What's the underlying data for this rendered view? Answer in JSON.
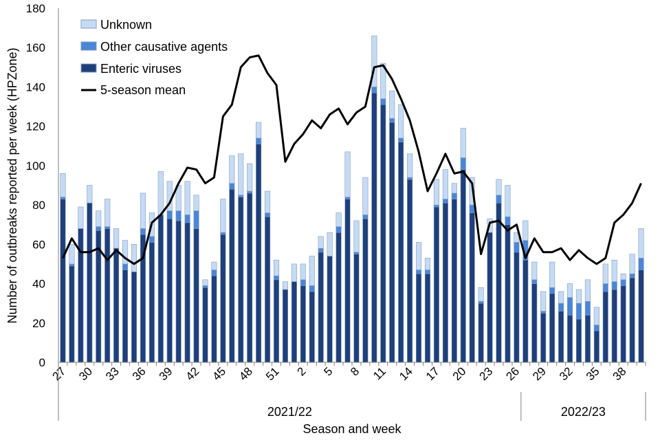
{
  "chart_data": {
    "type": "bar",
    "stacked": true,
    "title": "",
    "xlabel": "Season and week",
    "ylabel": "Number of outbreaks reported per week (HPZone)",
    "ylim": [
      0,
      180
    ],
    "ytick_step": 20,
    "x_tick_labels": [
      "27",
      "30",
      "33",
      "36",
      "39",
      "42",
      "45",
      "48",
      "51",
      "2",
      "5",
      "8",
      "11",
      "14",
      "17",
      "20",
      "23",
      "26",
      "29",
      "32",
      "35",
      "38"
    ],
    "seasons": [
      {
        "label": "2021/22",
        "start_index": 0,
        "count": 52
      },
      {
        "label": "2022/23",
        "start_index": 52,
        "count": 14
      }
    ],
    "weeks": [
      27,
      28,
      29,
      30,
      31,
      32,
      33,
      34,
      35,
      36,
      37,
      38,
      39,
      40,
      41,
      42,
      43,
      44,
      45,
      46,
      47,
      48,
      49,
      50,
      51,
      52,
      1,
      2,
      3,
      4,
      5,
      6,
      7,
      8,
      9,
      10,
      11,
      12,
      13,
      14,
      15,
      16,
      17,
      18,
      19,
      20,
      21,
      22,
      23,
      24,
      25,
      26,
      27,
      28,
      29,
      30,
      31,
      32,
      33,
      34,
      35,
      36,
      37,
      38,
      39,
      40
    ],
    "legend": [
      "Unknown",
      "Other causative agents",
      "Enteric viruses",
      "5-season mean"
    ],
    "colors": {
      "enteric": "#1f3f7a",
      "other": "#4a86d8",
      "unknown": "#c6dbf3",
      "bar_edge": "#7f9cc4",
      "mean_line": "#000000"
    },
    "series": [
      {
        "name": "Enteric viruses",
        "values": [
          83,
          49,
          68,
          81,
          67,
          68,
          58,
          47,
          46,
          65,
          61,
          75,
          73,
          72,
          71,
          68,
          38,
          44,
          65,
          88,
          84,
          86,
          111,
          74,
          42,
          37,
          41,
          39,
          36,
          56,
          54,
          66,
          83,
          55,
          73,
          137,
          131,
          122,
          112,
          93,
          45,
          45,
          79,
          81,
          83,
          98,
          76,
          30,
          66,
          81,
          70,
          56,
          52,
          40,
          25,
          35,
          26,
          24,
          22,
          24,
          16,
          36,
          37,
          39,
          43,
          47
        ]
      },
      {
        "name": "Other causative agents",
        "values": [
          1,
          1,
          0,
          0,
          2,
          1,
          0,
          3,
          0,
          3,
          3,
          0,
          4,
          5,
          4,
          9,
          1,
          3,
          1,
          3,
          1,
          1,
          3,
          2,
          2,
          0,
          0,
          3,
          3,
          2,
          0,
          3,
          1,
          1,
          2,
          3,
          3,
          2,
          2,
          1,
          2,
          2,
          1,
          2,
          3,
          6,
          4,
          1,
          0,
          4,
          4,
          5,
          10,
          2,
          1,
          3,
          4,
          9,
          8,
          7,
          3,
          4,
          4,
          3,
          2,
          6
        ]
      },
      {
        "name": "Unknown",
        "values": [
          12,
          10,
          11,
          9,
          8,
          14,
          10,
          12,
          14,
          18,
          12,
          22,
          15,
          13,
          17,
          8,
          3,
          4,
          17,
          14,
          21,
          14,
          8,
          11,
          8,
          4,
          9,
          8,
          15,
          6,
          12,
          7,
          23,
          16,
          19,
          26,
          18,
          14,
          17,
          12,
          14,
          6,
          13,
          15,
          5,
          15,
          14,
          7,
          7,
          8,
          16,
          5,
          10,
          9,
          10,
          13,
          6,
          7,
          7,
          11,
          9,
          10,
          11,
          3,
          10,
          15
        ]
      },
      {
        "name": "5-season mean",
        "type": "line",
        "values": [
          53,
          63,
          56,
          56,
          58,
          52,
          57,
          53,
          50,
          53,
          71,
          75,
          81,
          91,
          99,
          98,
          91,
          94,
          125,
          131,
          150,
          155,
          156,
          147,
          141,
          102,
          111,
          116,
          123,
          119,
          126,
          129,
          121,
          127,
          130,
          150,
          151,
          144,
          134,
          123,
          107,
          87,
          96,
          106,
          96,
          97,
          91,
          55,
          71,
          72,
          67,
          70,
          53,
          63,
          56,
          56,
          58,
          52,
          57,
          53,
          50,
          53,
          71,
          75,
          81,
          91
        ]
      }
    ]
  }
}
